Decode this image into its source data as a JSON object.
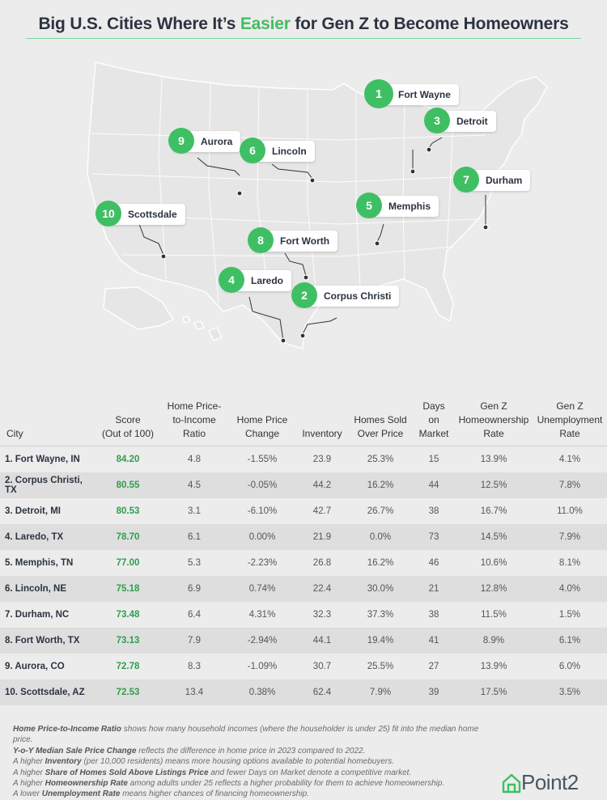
{
  "title": {
    "before": "Big U.S. Cities Where It’s ",
    "accent": "Easier",
    "after": " for Gen Z to Become Homeowners"
  },
  "colors": {
    "accent": "#3fbf63",
    "score": "#2e9e4f",
    "map_fill": "#e9e9e9",
    "map_border": "#ffffff"
  },
  "map_pins": [
    {
      "rank": "1",
      "city": "Fort Wayne"
    },
    {
      "rank": "2",
      "city": "Corpus Christi"
    },
    {
      "rank": "3",
      "city": "Detroit"
    },
    {
      "rank": "4",
      "city": "Laredo"
    },
    {
      "rank": "5",
      "city": "Memphis"
    },
    {
      "rank": "6",
      "city": "Lincoln"
    },
    {
      "rank": "7",
      "city": "Durham"
    },
    {
      "rank": "8",
      "city": "Fort Worth"
    },
    {
      "rank": "9",
      "city": "Aurora"
    },
    {
      "rank": "10",
      "city": "Scottsdale"
    }
  ],
  "table": {
    "headers": {
      "city": "City",
      "score": [
        "Score",
        "(Out of 100)"
      ],
      "ratio": [
        "Home Price-",
        "to-Income",
        "Ratio"
      ],
      "change": [
        "Home Price",
        "Change"
      ],
      "inventory": [
        "Inventory"
      ],
      "sold": [
        "Homes Sold",
        "Over Price"
      ],
      "days": [
        "Days",
        "on",
        "Market"
      ],
      "ownership": [
        "Gen Z",
        "Homeownership",
        "Rate"
      ],
      "unemployment": [
        "Gen Z",
        "Unemployment",
        "Rate"
      ]
    },
    "rows": [
      [
        "1. Fort Wayne, IN",
        "84.20",
        "4.8",
        "-1.55%",
        "23.9",
        "25.3%",
        "15",
        "13.9%",
        "4.1%"
      ],
      [
        "2. Corpus Christi, TX",
        "80.55",
        "4.5",
        "-0.05%",
        "44.2",
        "16.2%",
        "44",
        "12.5%",
        "7.8%"
      ],
      [
        "3. Detroit, MI",
        "80.53",
        "3.1",
        "-6.10%",
        "42.7",
        "26.7%",
        "38",
        "16.7%",
        "11.0%"
      ],
      [
        "4. Laredo, TX",
        "78.70",
        "6.1",
        "0.00%",
        "21.9",
        "0.0%",
        "73",
        "14.5%",
        "7.9%"
      ],
      [
        "5. Memphis, TN",
        "77.00",
        "5.3",
        "-2.23%",
        "26.8",
        "16.2%",
        "46",
        "10.6%",
        "8.1%"
      ],
      [
        "6. Lincoln, NE",
        "75.18",
        "6.9",
        "0.74%",
        "22.4",
        "30.0%",
        "21",
        "12.8%",
        "4.0%"
      ],
      [
        "7. Durham, NC",
        "73.48",
        "6.4",
        "4.31%",
        "32.3",
        "37.3%",
        "38",
        "11.5%",
        "1.5%"
      ],
      [
        "8. Fort Worth, TX",
        "73.13",
        "7.9",
        "-2.94%",
        "44.1",
        "19.4%",
        "41",
        "8.9%",
        "6.1%"
      ],
      [
        "9. Aurora, CO",
        "72.78",
        "8.3",
        "-1.09%",
        "30.7",
        "25.5%",
        "27",
        "13.9%",
        "6.0%"
      ],
      [
        "10. Scottsdale, AZ",
        "72.53",
        "13.4",
        "0.38%",
        "62.4",
        "7.9%",
        "39",
        "17.5%",
        "3.5%"
      ]
    ]
  },
  "notes": [
    {
      "pre": "",
      "bold": "Home Price-to-Income Ratio",
      "post": " shows how many household incomes (where the householder is under 25) fit into the median home price."
    },
    {
      "pre": "",
      "bold": "Y-o-Y Median Sale Price Change",
      "post": " reflects the difference in home price in 2023 compared to 2022."
    },
    {
      "pre": "A higher ",
      "bold": "Inventory",
      "post": " (per 10,000 residents) means more housing options available to potential homebuyers."
    },
    {
      "pre": "A higher ",
      "bold": "Share of Homes Sold Above Listings Price",
      "post": " and fewer Days on Market denote a competitive market."
    },
    {
      "pre": "A higher ",
      "bold": "Homeownership Rate",
      "post": " among adults under 25 reflects a higher probability for them to achieve homeownership."
    },
    {
      "pre": "A lower ",
      "bold": "Unemployment Rate",
      "post": " means higher chances of financing homeownership."
    }
  ],
  "logo": {
    "text": "Point2",
    "icon": "house-icon"
  }
}
